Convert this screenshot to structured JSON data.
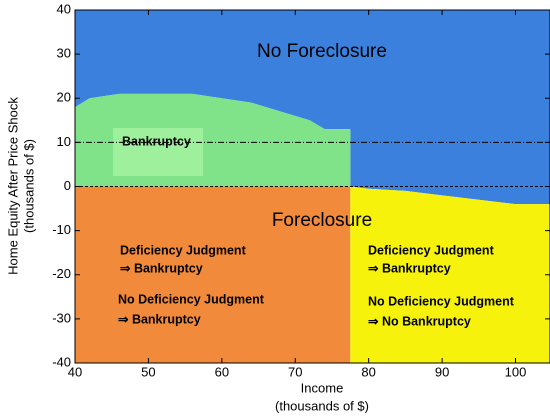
{
  "chart_data": {
    "type": "region",
    "xlabel": [
      "Income",
      "(thousands of $)"
    ],
    "ylabel": [
      "Home Equity After Price Shock",
      "(thousands of $)"
    ],
    "xlim": [
      40,
      104.7
    ],
    "ylim": [
      -40,
      40
    ],
    "xticks": [
      40,
      50,
      60,
      70,
      80,
      90,
      100
    ],
    "yticks": [
      -40,
      -30,
      -20,
      -10,
      0,
      10,
      20,
      30,
      40
    ],
    "regions": [
      {
        "color": "#3b80dc",
        "x": [
          40,
          42,
          46,
          50,
          56,
          60,
          64,
          68,
          72,
          74,
          77.5,
          77.5,
          80,
          85,
          90,
          95,
          100,
          104.7
        ],
        "y_lower": [
          18,
          20,
          21,
          21,
          21,
          20,
          19,
          17,
          15,
          13,
          13,
          0,
          -0.5,
          -1,
          -2,
          -3,
          -4,
          -4
        ],
        "y_upper": [
          40,
          40,
          40,
          40,
          40,
          40,
          40,
          40,
          40,
          40,
          40,
          40,
          40,
          40,
          40,
          40,
          40,
          40
        ]
      },
      {
        "color": "#80e38a",
        "x": [
          40,
          42,
          46,
          50,
          56,
          60,
          64,
          68,
          72,
          74,
          77.5
        ],
        "y_lower": [
          0,
          0,
          0,
          0,
          0,
          0,
          0,
          0,
          0,
          0,
          0
        ],
        "y_upper": [
          18,
          20,
          21,
          21,
          21,
          20,
          19,
          17,
          15,
          13,
          13
        ]
      },
      {
        "color": "#f28a3c",
        "x": [
          40,
          77.5
        ],
        "y_lower": [
          -40,
          -40
        ],
        "y_upper": [
          0,
          0
        ]
      },
      {
        "color": "#f6f20c",
        "x": [
          77.5,
          80,
          85,
          90,
          95,
          100,
          104.7
        ],
        "y_lower": [
          -40,
          -40,
          -40,
          -40,
          -40,
          -40,
          -40
        ],
        "y_upper": [
          0,
          -0.5,
          -1,
          -2,
          -3,
          -4,
          -4
        ]
      }
    ],
    "hlines": [
      {
        "y": 10,
        "style": "dashdot"
      },
      {
        "y": 0,
        "style": "dashed"
      }
    ],
    "annotations": [
      [
        "No Foreclosure"
      ],
      [
        "Bankruptcy"
      ],
      [
        "Foreclosure"
      ],
      [
        "Deficiency Judgment",
        "⇒ Bankruptcy"
      ],
      [
        "No Deficiency Judgment",
        "⇒ Bankruptcy"
      ],
      [
        "Deficiency Judgment",
        "⇒ Bankruptcy"
      ],
      [
        "No Deficiency Judgment",
        "⇒ No Bankruptcy"
      ]
    ]
  }
}
